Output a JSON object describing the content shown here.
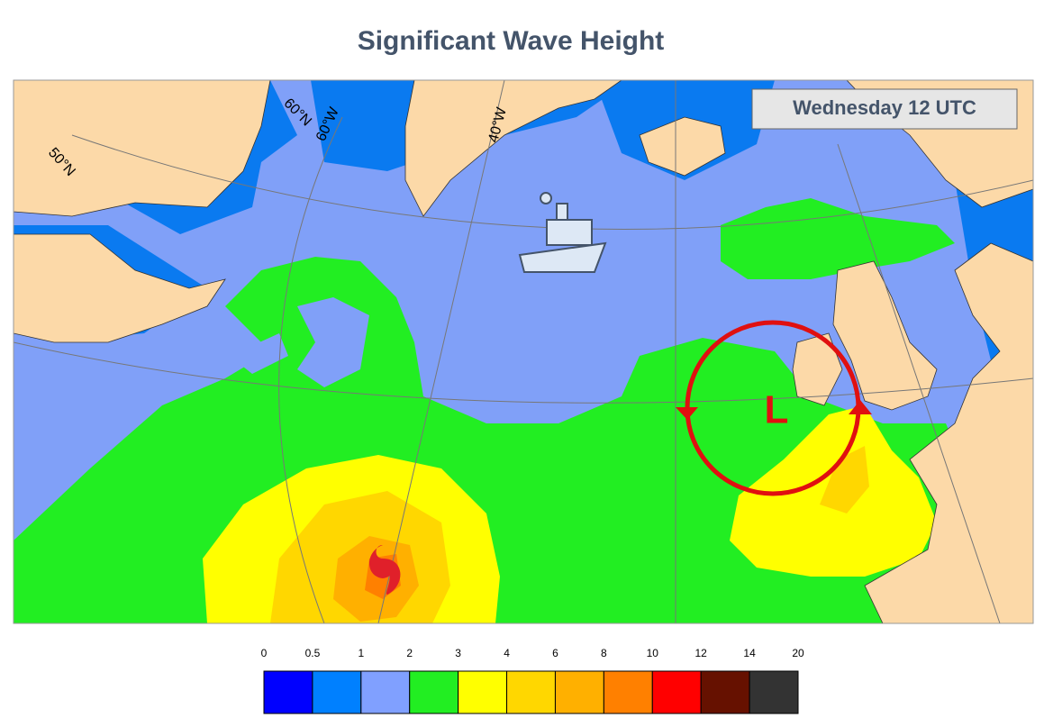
{
  "title": "Significant Wave Height",
  "time_label": "Wednesday 12 UTC",
  "grid_labels": {
    "lat_50": "50°N",
    "lat_60": "60°N",
    "lon_60": "60°W",
    "lon_40": "40°W"
  },
  "low_label": "L",
  "legend": {
    "ticks": [
      0,
      0.5,
      1,
      2,
      3,
      4,
      6,
      8,
      10,
      12,
      14,
      20
    ],
    "colors": [
      "#0000ff",
      "#0080ff",
      "#80a0ff",
      "#22ee22",
      "#ffff00",
      "#ffd700",
      "#ffb000",
      "#ff8000",
      "#ff0000",
      "#661100",
      "#333333"
    ]
  }
}
